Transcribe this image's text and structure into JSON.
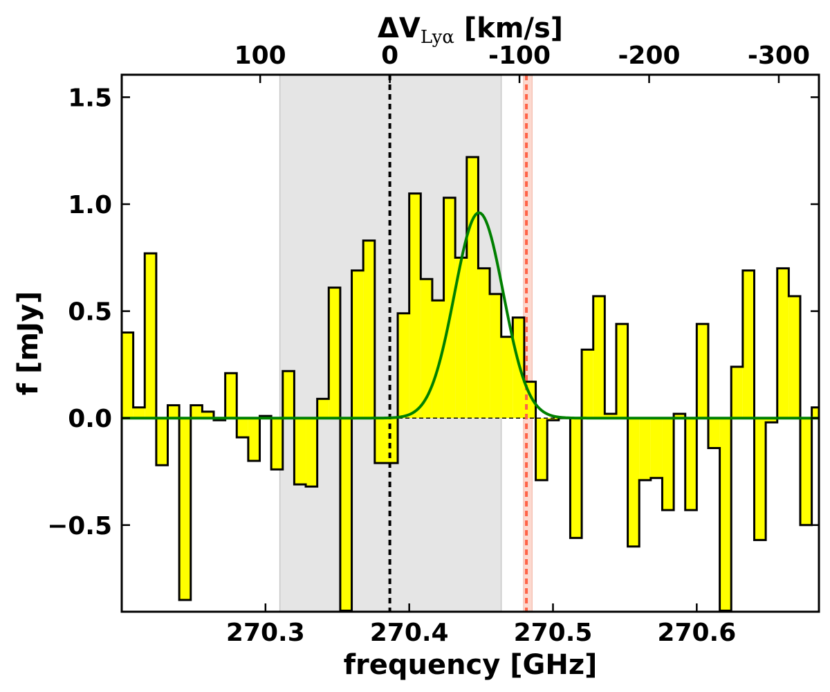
{
  "chart_data": {
    "type": "bar",
    "style": "step-histogram",
    "xlabel": "frequency [GHz]",
    "ylabel": "f [mJy]",
    "top_axis": {
      "label_prefix": "ΔV",
      "label_subscript": "Lyα",
      "label_suffix": " [km/s]",
      "ticks": [
        100,
        0,
        -100,
        -200,
        -300
      ],
      "tick_labels": [
        "100",
        "0",
        "-100",
        "-200",
        "-300"
      ]
    },
    "xlim": [
      270.2,
      270.685
    ],
    "ylim": [
      -0.905,
      1.605
    ],
    "x_ticks": [
      270.3,
      270.4,
      270.5,
      270.6
    ],
    "x_tick_labels": [
      "270.3",
      "270.4",
      "270.5",
      "270.6"
    ],
    "y_ticks": [
      -0.5,
      0.0,
      0.5,
      1.0,
      1.5
    ],
    "y_tick_labels": [
      "−0.5",
      "0.0",
      "0.5",
      "1.0",
      "1.5"
    ],
    "bin_edges": [
      270.2,
      270.208,
      270.216,
      270.224,
      270.232,
      270.24,
      270.248,
      270.256,
      270.264,
      270.272,
      270.28,
      270.288,
      270.296,
      270.304,
      270.312,
      270.32,
      270.328,
      270.336,
      270.344,
      270.352,
      270.36,
      270.368,
      270.376,
      270.384,
      270.392,
      270.4,
      270.408,
      270.416,
      270.424,
      270.432,
      270.44,
      270.448,
      270.456,
      270.464,
      270.472,
      270.48,
      270.488,
      270.496,
      270.504,
      270.512,
      270.52,
      270.528,
      270.536,
      270.544,
      270.552,
      270.56,
      270.568,
      270.576,
      270.584,
      270.592,
      270.6,
      270.608,
      270.616,
      270.624,
      270.632,
      270.64,
      270.648,
      270.656,
      270.664,
      270.672,
      270.68,
      270.688
    ],
    "values": [
      0.4,
      0.05,
      0.77,
      -0.22,
      0.06,
      -0.85,
      0.06,
      0.03,
      -0.01,
      0.21,
      -0.09,
      -0.2,
      0.01,
      -0.24,
      0.22,
      -0.31,
      -0.32,
      0.09,
      0.61,
      -0.9,
      0.69,
      0.83,
      -0.21,
      -0.21,
      0.49,
      1.05,
      0.65,
      0.55,
      1.03,
      0.75,
      1.22,
      0.7,
      0.58,
      0.38,
      0.47,
      0.17,
      -0.29,
      -0.01,
      0.0,
      -0.56,
      0.32,
      0.57,
      0.02,
      0.44,
      -0.6,
      -0.29,
      -0.28,
      -0.43,
      0.02,
      -0.43,
      0.44,
      -0.14,
      -0.9,
      0.24,
      0.69,
      -0.57,
      -0.02,
      0.7,
      0.57,
      -0.5,
      0.05
    ],
    "gaussian_fit": {
      "amplitude": 0.96,
      "center": 270.4485,
      "sigma": 0.017
    },
    "shaded_region": {
      "x": [
        270.31,
        270.464
      ]
    },
    "lya_reference": {
      "x": 270.3865
    },
    "red_marker": {
      "x": 270.4815,
      "band": [
        270.4795,
        270.4855
      ]
    },
    "colors": {
      "fill": "#ffff00",
      "outline": "#000000",
      "fit": "#008000",
      "shade": "#e5e5e5",
      "red_line": "#ff6347",
      "red_band": "#fcd9cf"
    }
  }
}
